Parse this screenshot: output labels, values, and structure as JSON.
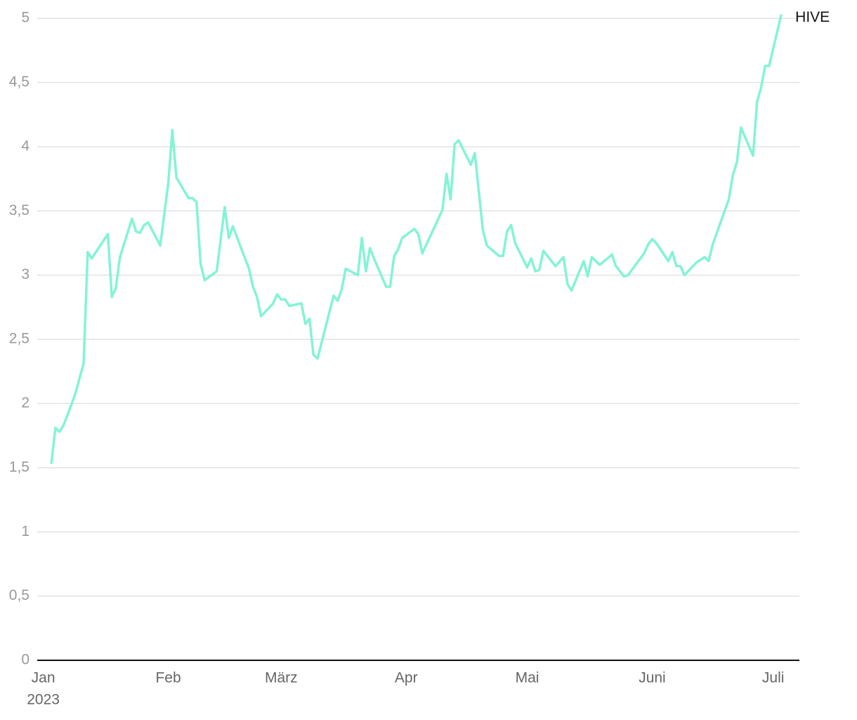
{
  "chart_data": {
    "type": "line",
    "x": [
      3,
      4,
      5,
      6,
      7,
      9,
      10,
      11,
      12,
      13,
      17,
      18,
      19,
      20,
      23,
      24,
      25,
      26,
      27,
      30,
      32,
      33,
      34,
      37,
      38,
      39,
      40,
      41,
      44,
      46,
      47,
      48,
      52,
      53,
      54,
      55,
      58,
      59,
      60,
      61,
      62,
      65,
      66,
      67,
      68,
      69,
      73,
      74,
      75,
      76,
      79,
      80,
      81,
      82,
      83,
      86,
      87,
      88,
      89,
      90,
      93,
      94,
      95,
      100,
      101,
      102,
      103,
      104,
      107,
      108,
      110,
      111,
      114,
      115,
      116,
      117,
      118,
      121,
      122,
      123,
      124,
      125,
      128,
      130,
      131,
      132,
      135,
      136,
      137,
      139,
      142,
      143,
      144,
      145,
      146,
      150,
      151,
      152,
      153,
      156,
      157,
      158,
      159,
      160,
      163,
      165,
      166,
      167,
      171,
      172,
      173,
      174,
      177,
      178,
      179,
      180,
      181,
      184
    ],
    "series": [
      {
        "name": "HIVE",
        "color": "#84f3d6",
        "values": [
          1.53,
          1.81,
          1.78,
          1.83,
          1.91,
          2.08,
          2.2,
          2.31,
          3.18,
          3.13,
          3.32,
          2.83,
          2.9,
          3.14,
          3.44,
          3.34,
          3.33,
          3.39,
          3.41,
          3.23,
          3.72,
          4.13,
          3.76,
          3.6,
          3.6,
          3.57,
          3.09,
          2.96,
          3.03,
          3.53,
          3.29,
          3.38,
          3.05,
          2.91,
          2.83,
          2.68,
          2.78,
          2.85,
          2.81,
          2.81,
          2.76,
          2.78,
          2.62,
          2.66,
          2.38,
          2.35,
          2.84,
          2.8,
          2.89,
          3.05,
          3.0,
          3.29,
          3.03,
          3.21,
          3.13,
          2.91,
          2.91,
          3.15,
          3.2,
          3.29,
          3.36,
          3.32,
          3.17,
          3.51,
          3.79,
          3.59,
          4.02,
          4.05,
          3.86,
          3.95,
          3.35,
          3.23,
          3.15,
          3.15,
          3.34,
          3.39,
          3.25,
          3.06,
          3.13,
          3.03,
          3.04,
          3.19,
          3.07,
          3.14,
          2.93,
          2.88,
          3.11,
          2.99,
          3.14,
          3.08,
          3.16,
          3.07,
          3.03,
          2.99,
          3.0,
          3.17,
          3.24,
          3.28,
          3.25,
          3.11,
          3.18,
          3.07,
          3.07,
          3.0,
          3.1,
          3.14,
          3.11,
          3.24,
          3.59,
          3.78,
          3.88,
          4.15,
          3.93,
          4.35,
          4.46,
          4.63,
          4.63,
          5.03
        ]
      }
    ],
    "xlim": [
      -0.5,
      188.5
    ],
    "xticks": [
      {
        "value": 1,
        "label": "Jan"
      },
      {
        "value": 32,
        "label": "Feb"
      },
      {
        "value": 60,
        "label": "März"
      },
      {
        "value": 91,
        "label": "Apr"
      },
      {
        "value": 121,
        "label": "Mai"
      },
      {
        "value": 152,
        "label": "Juni"
      },
      {
        "value": 182,
        "label": "Juli"
      }
    ],
    "year": "2023",
    "ylim": [
      0,
      5.05
    ],
    "yticks": [
      0,
      {
        "value": 0.5,
        "label": "0,5"
      },
      1,
      {
        "value": 1.5,
        "label": "1,5"
      },
      2,
      {
        "value": 2.5,
        "label": "2,5"
      },
      3,
      {
        "value": 3.5,
        "label": "3,5"
      },
      4,
      {
        "value": 4.5,
        "label": "4,5"
      },
      5
    ],
    "grid": true
  }
}
